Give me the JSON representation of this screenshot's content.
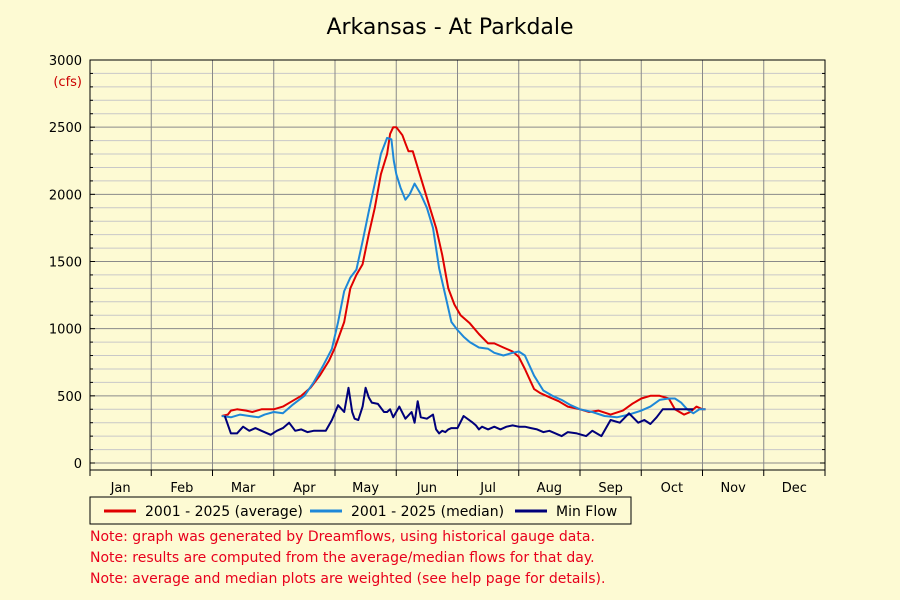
{
  "chart_data": {
    "type": "line",
    "title": "Arkansas - At Parkdale",
    "ylabel_unit": "(cfs)",
    "ylim": [
      0,
      3000
    ],
    "yticks": [
      0,
      500,
      1000,
      1500,
      2000,
      2500,
      3000
    ],
    "months": [
      "Jan",
      "Feb",
      "Mar",
      "Apr",
      "May",
      "Jun",
      "Jul",
      "Aug",
      "Sep",
      "Oct",
      "Nov",
      "Dec"
    ],
    "grid": true,
    "legend_position": "bottom",
    "series": [
      {
        "name": "2001 - 2025 (average)",
        "color": "#e00000",
        "x": [
          2.15,
          2.25,
          2.3,
          2.4,
          2.55,
          2.65,
          2.8,
          3.0,
          3.15,
          3.3,
          3.45,
          3.6,
          3.75,
          3.9,
          4.0,
          4.15,
          4.25,
          4.35,
          4.45,
          4.55,
          4.65,
          4.75,
          4.85,
          4.9,
          4.95,
          5.0,
          5.1,
          5.15,
          5.2,
          5.27,
          5.35,
          5.45,
          5.55,
          5.65,
          5.75,
          5.85,
          5.95,
          6.05,
          6.2,
          6.35,
          6.5,
          6.6,
          6.75,
          6.9,
          7.0,
          7.1,
          7.25,
          7.35,
          7.5,
          7.65,
          7.8,
          8.0,
          8.15,
          8.3,
          8.5,
          8.7,
          8.85,
          9.0,
          9.15,
          9.3,
          9.45,
          9.55,
          9.7,
          9.8,
          9.9,
          10.0,
          10.05
        ],
        "values": [
          350,
          360,
          390,
          400,
          390,
          380,
          400,
          400,
          420,
          460,
          500,
          560,
          650,
          760,
          860,
          1050,
          1300,
          1400,
          1480,
          1700,
          1900,
          2150,
          2300,
          2450,
          2500,
          2500,
          2440,
          2380,
          2320,
          2320,
          2200,
          2050,
          1900,
          1750,
          1550,
          1300,
          1180,
          1100,
          1040,
          960,
          890,
          890,
          860,
          830,
          790,
          700,
          550,
          520,
          490,
          460,
          420,
          400,
          380,
          390,
          360,
          390,
          440,
          480,
          500,
          500,
          480,
          400,
          360,
          380,
          420,
          400,
          400
        ]
      },
      {
        "name": "2001 - 2025 (median)",
        "color": "#1e88d8",
        "x": [
          2.15,
          2.3,
          2.45,
          2.6,
          2.75,
          2.85,
          3.0,
          3.15,
          3.3,
          3.5,
          3.65,
          3.8,
          3.95,
          4.05,
          4.15,
          4.25,
          4.35,
          4.45,
          4.55,
          4.65,
          4.75,
          4.85,
          4.92,
          4.96,
          5.0,
          5.07,
          5.15,
          5.22,
          5.3,
          5.4,
          5.5,
          5.6,
          5.7,
          5.8,
          5.9,
          6.0,
          6.1,
          6.2,
          6.35,
          6.5,
          6.6,
          6.75,
          6.9,
          7.0,
          7.1,
          7.25,
          7.4,
          7.55,
          7.7,
          7.85,
          8.0,
          8.2,
          8.4,
          8.6,
          8.8,
          9.0,
          9.15,
          9.3,
          9.45,
          9.55,
          9.65,
          9.75,
          9.85,
          9.95,
          10.05
        ],
        "values": [
          350,
          340,
          360,
          350,
          340,
          360,
          380,
          370,
          430,
          500,
          600,
          720,
          850,
          1050,
          1280,
          1380,
          1440,
          1650,
          1870,
          2080,
          2300,
          2420,
          2410,
          2250,
          2150,
          2050,
          1960,
          2000,
          2080,
          2000,
          1900,
          1750,
          1450,
          1250,
          1050,
          990,
          940,
          900,
          860,
          850,
          820,
          800,
          820,
          830,
          800,
          650,
          540,
          500,
          470,
          430,
          400,
          380,
          350,
          340,
          360,
          390,
          420,
          470,
          480,
          480,
          450,
          400,
          370,
          400,
          400
        ]
      },
      {
        "name": "Min Flow",
        "color": "#00007a",
        "x": [
          2.2,
          2.3,
          2.4,
          2.5,
          2.6,
          2.7,
          2.8,
          2.95,
          3.05,
          3.15,
          3.25,
          3.35,
          3.45,
          3.55,
          3.65,
          3.75,
          3.85,
          3.95,
          4.05,
          4.15,
          4.22,
          4.28,
          4.32,
          4.38,
          4.45,
          4.5,
          4.55,
          4.6,
          4.7,
          4.8,
          4.85,
          4.9,
          4.95,
          5.05,
          5.15,
          5.25,
          5.3,
          5.35,
          5.4,
          5.5,
          5.6,
          5.65,
          5.7,
          5.75,
          5.8,
          5.85,
          5.9,
          6.0,
          6.1,
          6.25,
          6.3,
          6.35,
          6.4,
          6.5,
          6.6,
          6.7,
          6.8,
          6.9,
          7.0,
          7.1,
          7.2,
          7.3,
          7.4,
          7.5,
          7.6,
          7.7,
          7.8,
          7.95,
          8.1,
          8.2,
          8.35,
          8.5,
          8.65,
          8.8,
          8.95,
          9.05,
          9.15,
          9.25,
          9.35,
          9.45,
          9.55,
          9.65,
          9.75,
          9.85
        ],
        "values": [
          350,
          220,
          220,
          270,
          240,
          260,
          240,
          210,
          240,
          260,
          300,
          240,
          250,
          230,
          240,
          240,
          240,
          320,
          430,
          380,
          560,
          380,
          330,
          320,
          420,
          560,
          490,
          450,
          440,
          380,
          380,
          400,
          340,
          420,
          330,
          380,
          300,
          460,
          340,
          330,
          360,
          250,
          220,
          240,
          230,
          250,
          260,
          260,
          350,
          300,
          280,
          250,
          270,
          250,
          270,
          250,
          270,
          280,
          270,
          270,
          260,
          250,
          230,
          240,
          220,
          200,
          230,
          220,
          200,
          240,
          200,
          320,
          300,
          370,
          300,
          320,
          290,
          340,
          400,
          400,
          400,
          400,
          400,
          400
        ]
      }
    ],
    "notes": [
      "Note: graph was generated by Dreamflows, using historical gauge data.",
      "Note: results are computed from the average/median flows for that day.",
      "Note: average and median plots are weighted (see help page for details)."
    ]
  }
}
